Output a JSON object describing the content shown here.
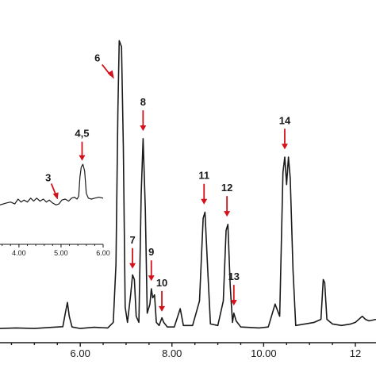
{
  "chart_data": {
    "type": "line",
    "title": "",
    "xlabel": "",
    "ylabel": "",
    "xlim": [
      4.25,
      12.45
    ],
    "ylim": [
      0,
      100
    ],
    "x_tick_labels": [
      "4.00",
      "6.00",
      "8.00",
      "10.00",
      "12"
    ],
    "x_tick_values": [
      4.0,
      6.0,
      8.0,
      10.0,
      12.0
    ],
    "colors": {
      "trace": "#1a1a1a",
      "arrow": "#d4111a"
    },
    "series": [
      {
        "points": [
          [
            4.25,
            1.0
          ],
          [
            4.6,
            1.2
          ],
          [
            5.0,
            1.0
          ],
          [
            5.4,
            1.4
          ],
          [
            5.62,
            1.6
          ],
          [
            5.68,
            6.5
          ],
          [
            5.72,
            9.5
          ],
          [
            5.76,
            5.0
          ],
          [
            5.82,
            1.5
          ],
          [
            6.0,
            1.0
          ],
          [
            6.3,
            1.4
          ],
          [
            6.6,
            1.2
          ],
          [
            6.72,
            3.0
          ],
          [
            6.78,
            22.0
          ],
          [
            6.82,
            72.0
          ],
          [
            6.85,
            95.0
          ],
          [
            6.9,
            93.0
          ],
          [
            6.94,
            60.0
          ],
          [
            6.98,
            8.0
          ],
          [
            7.03,
            3.0
          ],
          [
            7.1,
            12.0
          ],
          [
            7.14,
            18.5
          ],
          [
            7.18,
            17.0
          ],
          [
            7.22,
            5.0
          ],
          [
            7.28,
            3.0
          ],
          [
            7.33,
            45.0
          ],
          [
            7.37,
            63.0
          ],
          [
            7.42,
            40.0
          ],
          [
            7.46,
            6.0
          ],
          [
            7.52,
            9.0
          ],
          [
            7.55,
            14.0
          ],
          [
            7.58,
            11.0
          ],
          [
            7.62,
            12.0
          ],
          [
            7.66,
            3.0
          ],
          [
            7.72,
            2.0
          ],
          [
            7.78,
            4.5
          ],
          [
            7.82,
            3.0
          ],
          [
            7.9,
            1.5
          ],
          [
            8.05,
            1.5
          ],
          [
            8.18,
            7.5
          ],
          [
            8.25,
            2.0
          ],
          [
            8.45,
            2.0
          ],
          [
            8.6,
            10.0
          ],
          [
            8.68,
            37.0
          ],
          [
            8.72,
            39.0
          ],
          [
            8.78,
            20.0
          ],
          [
            8.84,
            2.5
          ],
          [
            9.0,
            2.0
          ],
          [
            9.12,
            10.0
          ],
          [
            9.18,
            33.0
          ],
          [
            9.22,
            35.0
          ],
          [
            9.27,
            15.0
          ],
          [
            9.32,
            3.0
          ],
          [
            9.35,
            6.0
          ],
          [
            9.4,
            3.5
          ],
          [
            9.5,
            1.5
          ],
          [
            9.9,
            1.2
          ],
          [
            10.1,
            1.5
          ],
          [
            10.25,
            9.0
          ],
          [
            10.3,
            7.0
          ],
          [
            10.35,
            5.0
          ],
          [
            10.42,
            52.0
          ],
          [
            10.46,
            57.0
          ],
          [
            10.5,
            48.0
          ],
          [
            10.54,
            57.0
          ],
          [
            10.58,
            50.0
          ],
          [
            10.64,
            20.0
          ],
          [
            10.7,
            2.0
          ],
          [
            10.9,
            2.5
          ],
          [
            11.1,
            3.0
          ],
          [
            11.25,
            4.0
          ],
          [
            11.3,
            17.0
          ],
          [
            11.33,
            16.0
          ],
          [
            11.38,
            4.0
          ],
          [
            11.5,
            2.5
          ],
          [
            11.7,
            2.0
          ],
          [
            11.9,
            2.5
          ],
          [
            12.0,
            3.0
          ],
          [
            12.15,
            5.0
          ],
          [
            12.22,
            4.0
          ],
          [
            12.3,
            3.5
          ],
          [
            12.45,
            4.0
          ]
        ]
      }
    ],
    "annotations": [
      {
        "label": "6",
        "x": 6.72,
        "y": 82
      },
      {
        "label": "7",
        "x": 7.14,
        "y": 20
      },
      {
        "label": "8",
        "x": 7.37,
        "y": 65
      },
      {
        "label": "9",
        "x": 7.55,
        "y": 16
      },
      {
        "label": "10",
        "x": 7.78,
        "y": 6
      },
      {
        "label": "11",
        "x": 8.7,
        "y": 41
      },
      {
        "label": "12",
        "x": 9.2,
        "y": 37
      },
      {
        "label": "13",
        "x": 9.35,
        "y": 8
      },
      {
        "label": "14",
        "x": 10.46,
        "y": 59
      }
    ],
    "inset": {
      "type": "line",
      "xlim": [
        3.55,
        6.0
      ],
      "ylim": [
        0,
        100
      ],
      "x_tick_labels": [
        "4.00",
        "5.00",
        "6.00"
      ],
      "x_tick_values": [
        4.0,
        5.0,
        6.0
      ],
      "series": [
        {
          "points": [
            [
              3.55,
              3
            ],
            [
              3.7,
              5
            ],
            [
              3.8,
              6
            ],
            [
              3.9,
              4
            ],
            [
              3.98,
              9
            ],
            [
              4.05,
              6
            ],
            [
              4.12,
              8
            ],
            [
              4.2,
              6
            ],
            [
              4.28,
              10
            ],
            [
              4.35,
              7
            ],
            [
              4.42,
              10
            ],
            [
              4.5,
              7
            ],
            [
              4.58,
              9
            ],
            [
              4.65,
              6
            ],
            [
              4.72,
              8
            ],
            [
              4.8,
              5
            ],
            [
              4.88,
              3
            ],
            [
              4.95,
              4
            ],
            [
              5.02,
              8
            ],
            [
              5.1,
              9
            ],
            [
              5.18,
              7
            ],
            [
              5.25,
              10
            ],
            [
              5.32,
              11
            ],
            [
              5.38,
              9
            ],
            [
              5.42,
              12
            ],
            [
              5.45,
              32
            ],
            [
              5.48,
              42
            ],
            [
              5.52,
              45
            ],
            [
              5.56,
              38
            ],
            [
              5.6,
              15
            ],
            [
              5.65,
              10
            ],
            [
              5.72,
              9
            ],
            [
              5.8,
              10
            ],
            [
              5.9,
              11
            ],
            [
              6.0,
              10
            ]
          ]
        }
      ],
      "annotations": [
        {
          "label": "3",
          "x": 4.92,
          "y": 7
        },
        {
          "label": "4,5",
          "x": 5.5,
          "y": 47
        }
      ]
    }
  }
}
